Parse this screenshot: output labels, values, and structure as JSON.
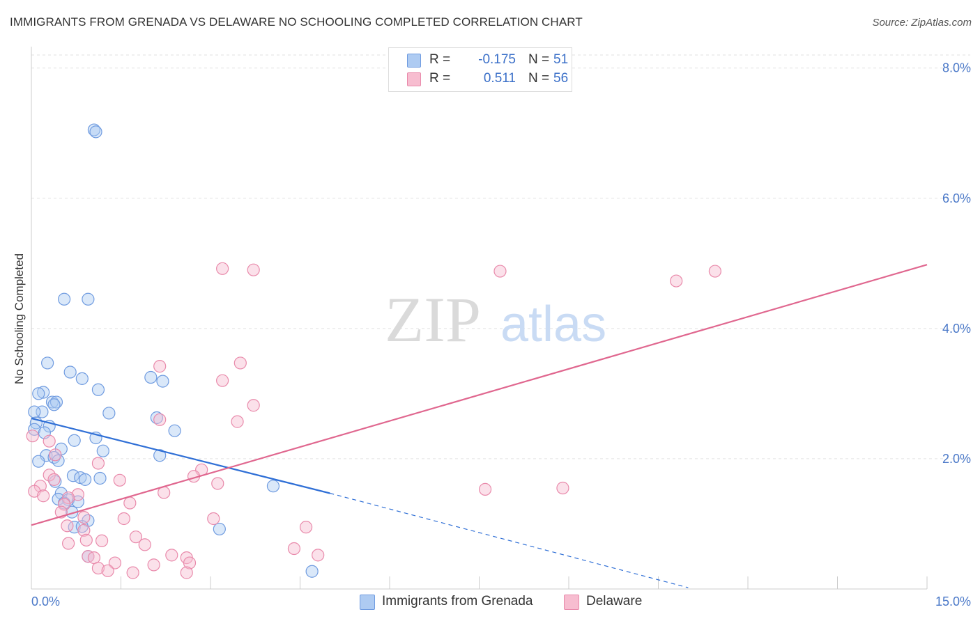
{
  "title": "IMMIGRANTS FROM GRENADA VS DELAWARE NO SCHOOLING COMPLETED CORRELATION CHART",
  "source": "Source: ZipAtlas.com",
  "watermark": {
    "zip": "ZIP",
    "atlas": "atlas"
  },
  "legend": {
    "rows": [
      {
        "r_label": "R =",
        "r_value": "-0.175",
        "n_label": "N =",
        "n_value": "51",
        "fill": "#aecbf2",
        "stroke": "#6f9be0"
      },
      {
        "r_label": "R =",
        "r_value": "0.511",
        "n_label": "N =",
        "n_value": "56",
        "fill": "#f7bdd0",
        "stroke": "#e98aab"
      }
    ]
  },
  "bottom_legend": [
    {
      "label": "Immigrants from Grenada",
      "fill": "#aecbf2",
      "stroke": "#6f9be0"
    },
    {
      "label": "Delaware",
      "fill": "#f7bdd0",
      "stroke": "#e98aab"
    }
  ],
  "chart_data": {
    "type": "scatter",
    "title": "IMMIGRANTS FROM GRENADA VS DELAWARE NO SCHOOLING COMPLETED CORRELATION CHART",
    "xlabel": "",
    "ylabel": "No Schooling Completed",
    "xlim": [
      0,
      15
    ],
    "ylim": [
      0,
      8.2
    ],
    "x_tick_labels": [
      {
        "value": 0,
        "label": "0.0%"
      },
      {
        "value": 15,
        "label": "15.0%"
      }
    ],
    "y_tick_labels": [
      {
        "value": 2,
        "label": "2.0%"
      },
      {
        "value": 4,
        "label": "4.0%"
      },
      {
        "value": 6,
        "label": "6.0%"
      },
      {
        "value": 8,
        "label": "8.0%"
      }
    ],
    "grid": true,
    "series": [
      {
        "name": "Immigrants from Grenada",
        "color": "#6f9be0",
        "fill": "#aecbf2",
        "trend_color": "#2f6fd6",
        "trend": {
          "x0": 0,
          "y0": 2.62,
          "x1": 5.0,
          "y1": 1.47,
          "dash_x1": 11.0,
          "dash_y1": 0.02
        },
        "points": [
          [
            1.05,
            7.05
          ],
          [
            1.08,
            7.02
          ],
          [
            0.55,
            4.45
          ],
          [
            0.95,
            4.45
          ],
          [
            0.27,
            3.47
          ],
          [
            0.65,
            3.33
          ],
          [
            0.85,
            3.23
          ],
          [
            2.0,
            3.25
          ],
          [
            2.2,
            3.19
          ],
          [
            0.2,
            3.02
          ],
          [
            1.12,
            3.06
          ],
          [
            0.12,
            3.0
          ],
          [
            0.35,
            2.87
          ],
          [
            0.42,
            2.87
          ],
          [
            0.38,
            2.83
          ],
          [
            0.18,
            2.72
          ],
          [
            0.05,
            2.72
          ],
          [
            1.3,
            2.7
          ],
          [
            2.1,
            2.63
          ],
          [
            0.08,
            2.55
          ],
          [
            0.3,
            2.5
          ],
          [
            0.05,
            2.45
          ],
          [
            0.22,
            2.4
          ],
          [
            2.4,
            2.43
          ],
          [
            1.08,
            2.32
          ],
          [
            0.72,
            2.28
          ],
          [
            0.5,
            2.15
          ],
          [
            1.2,
            2.12
          ],
          [
            0.25,
            2.05
          ],
          [
            0.38,
            2.02
          ],
          [
            2.15,
            2.05
          ],
          [
            0.45,
            1.97
          ],
          [
            0.12,
            1.96
          ],
          [
            0.7,
            1.74
          ],
          [
            0.82,
            1.71
          ],
          [
            0.9,
            1.68
          ],
          [
            1.15,
            1.7
          ],
          [
            0.4,
            1.65
          ],
          [
            4.05,
            1.58
          ],
          [
            0.5,
            1.47
          ],
          [
            0.45,
            1.38
          ],
          [
            0.62,
            1.37
          ],
          [
            0.78,
            1.34
          ],
          [
            0.55,
            1.32
          ],
          [
            0.68,
            1.18
          ],
          [
            0.95,
            1.05
          ],
          [
            0.72,
            0.95
          ],
          [
            0.85,
            0.96
          ],
          [
            3.15,
            0.92
          ],
          [
            0.95,
            0.5
          ],
          [
            4.7,
            0.27
          ]
        ]
      },
      {
        "name": "Delaware",
        "color": "#e98aab",
        "fill": "#f7bdd0",
        "trend_color": "#e0678f",
        "trend": {
          "x0": 0,
          "y0": 0.98,
          "x1": 15.0,
          "y1": 4.98
        },
        "points": [
          [
            3.2,
            4.92
          ],
          [
            3.72,
            4.9
          ],
          [
            7.85,
            4.88
          ],
          [
            11.45,
            4.88
          ],
          [
            10.8,
            4.73
          ],
          [
            3.5,
            3.47
          ],
          [
            2.15,
            3.42
          ],
          [
            3.2,
            3.2
          ],
          [
            3.72,
            2.82
          ],
          [
            3.45,
            2.57
          ],
          [
            2.15,
            2.6
          ],
          [
            0.02,
            2.35
          ],
          [
            0.3,
            2.27
          ],
          [
            0.4,
            2.06
          ],
          [
            1.12,
            1.93
          ],
          [
            2.85,
            1.83
          ],
          [
            0.3,
            1.75
          ],
          [
            2.72,
            1.73
          ],
          [
            0.38,
            1.68
          ],
          [
            1.48,
            1.67
          ],
          [
            3.12,
            1.62
          ],
          [
            0.15,
            1.58
          ],
          [
            8.9,
            1.55
          ],
          [
            7.6,
            1.53
          ],
          [
            0.05,
            1.5
          ],
          [
            2.22,
            1.48
          ],
          [
            0.78,
            1.45
          ],
          [
            0.2,
            1.43
          ],
          [
            0.62,
            1.4
          ],
          [
            1.65,
            1.32
          ],
          [
            0.55,
            1.3
          ],
          [
            0.5,
            1.18
          ],
          [
            0.88,
            1.1
          ],
          [
            1.55,
            1.08
          ],
          [
            3.05,
            1.08
          ],
          [
            0.6,
            0.97
          ],
          [
            4.6,
            0.95
          ],
          [
            0.88,
            0.9
          ],
          [
            1.75,
            0.8
          ],
          [
            0.92,
            0.75
          ],
          [
            1.18,
            0.74
          ],
          [
            0.62,
            0.7
          ],
          [
            1.9,
            0.68
          ],
          [
            4.4,
            0.62
          ],
          [
            0.95,
            0.5
          ],
          [
            2.35,
            0.52
          ],
          [
            2.6,
            0.48
          ],
          [
            4.8,
            0.52
          ],
          [
            1.05,
            0.48
          ],
          [
            1.4,
            0.4
          ],
          [
            2.65,
            0.4
          ],
          [
            2.05,
            0.37
          ],
          [
            1.12,
            0.32
          ],
          [
            1.28,
            0.28
          ],
          [
            1.7,
            0.25
          ],
          [
            2.6,
            0.25
          ]
        ]
      }
    ]
  }
}
